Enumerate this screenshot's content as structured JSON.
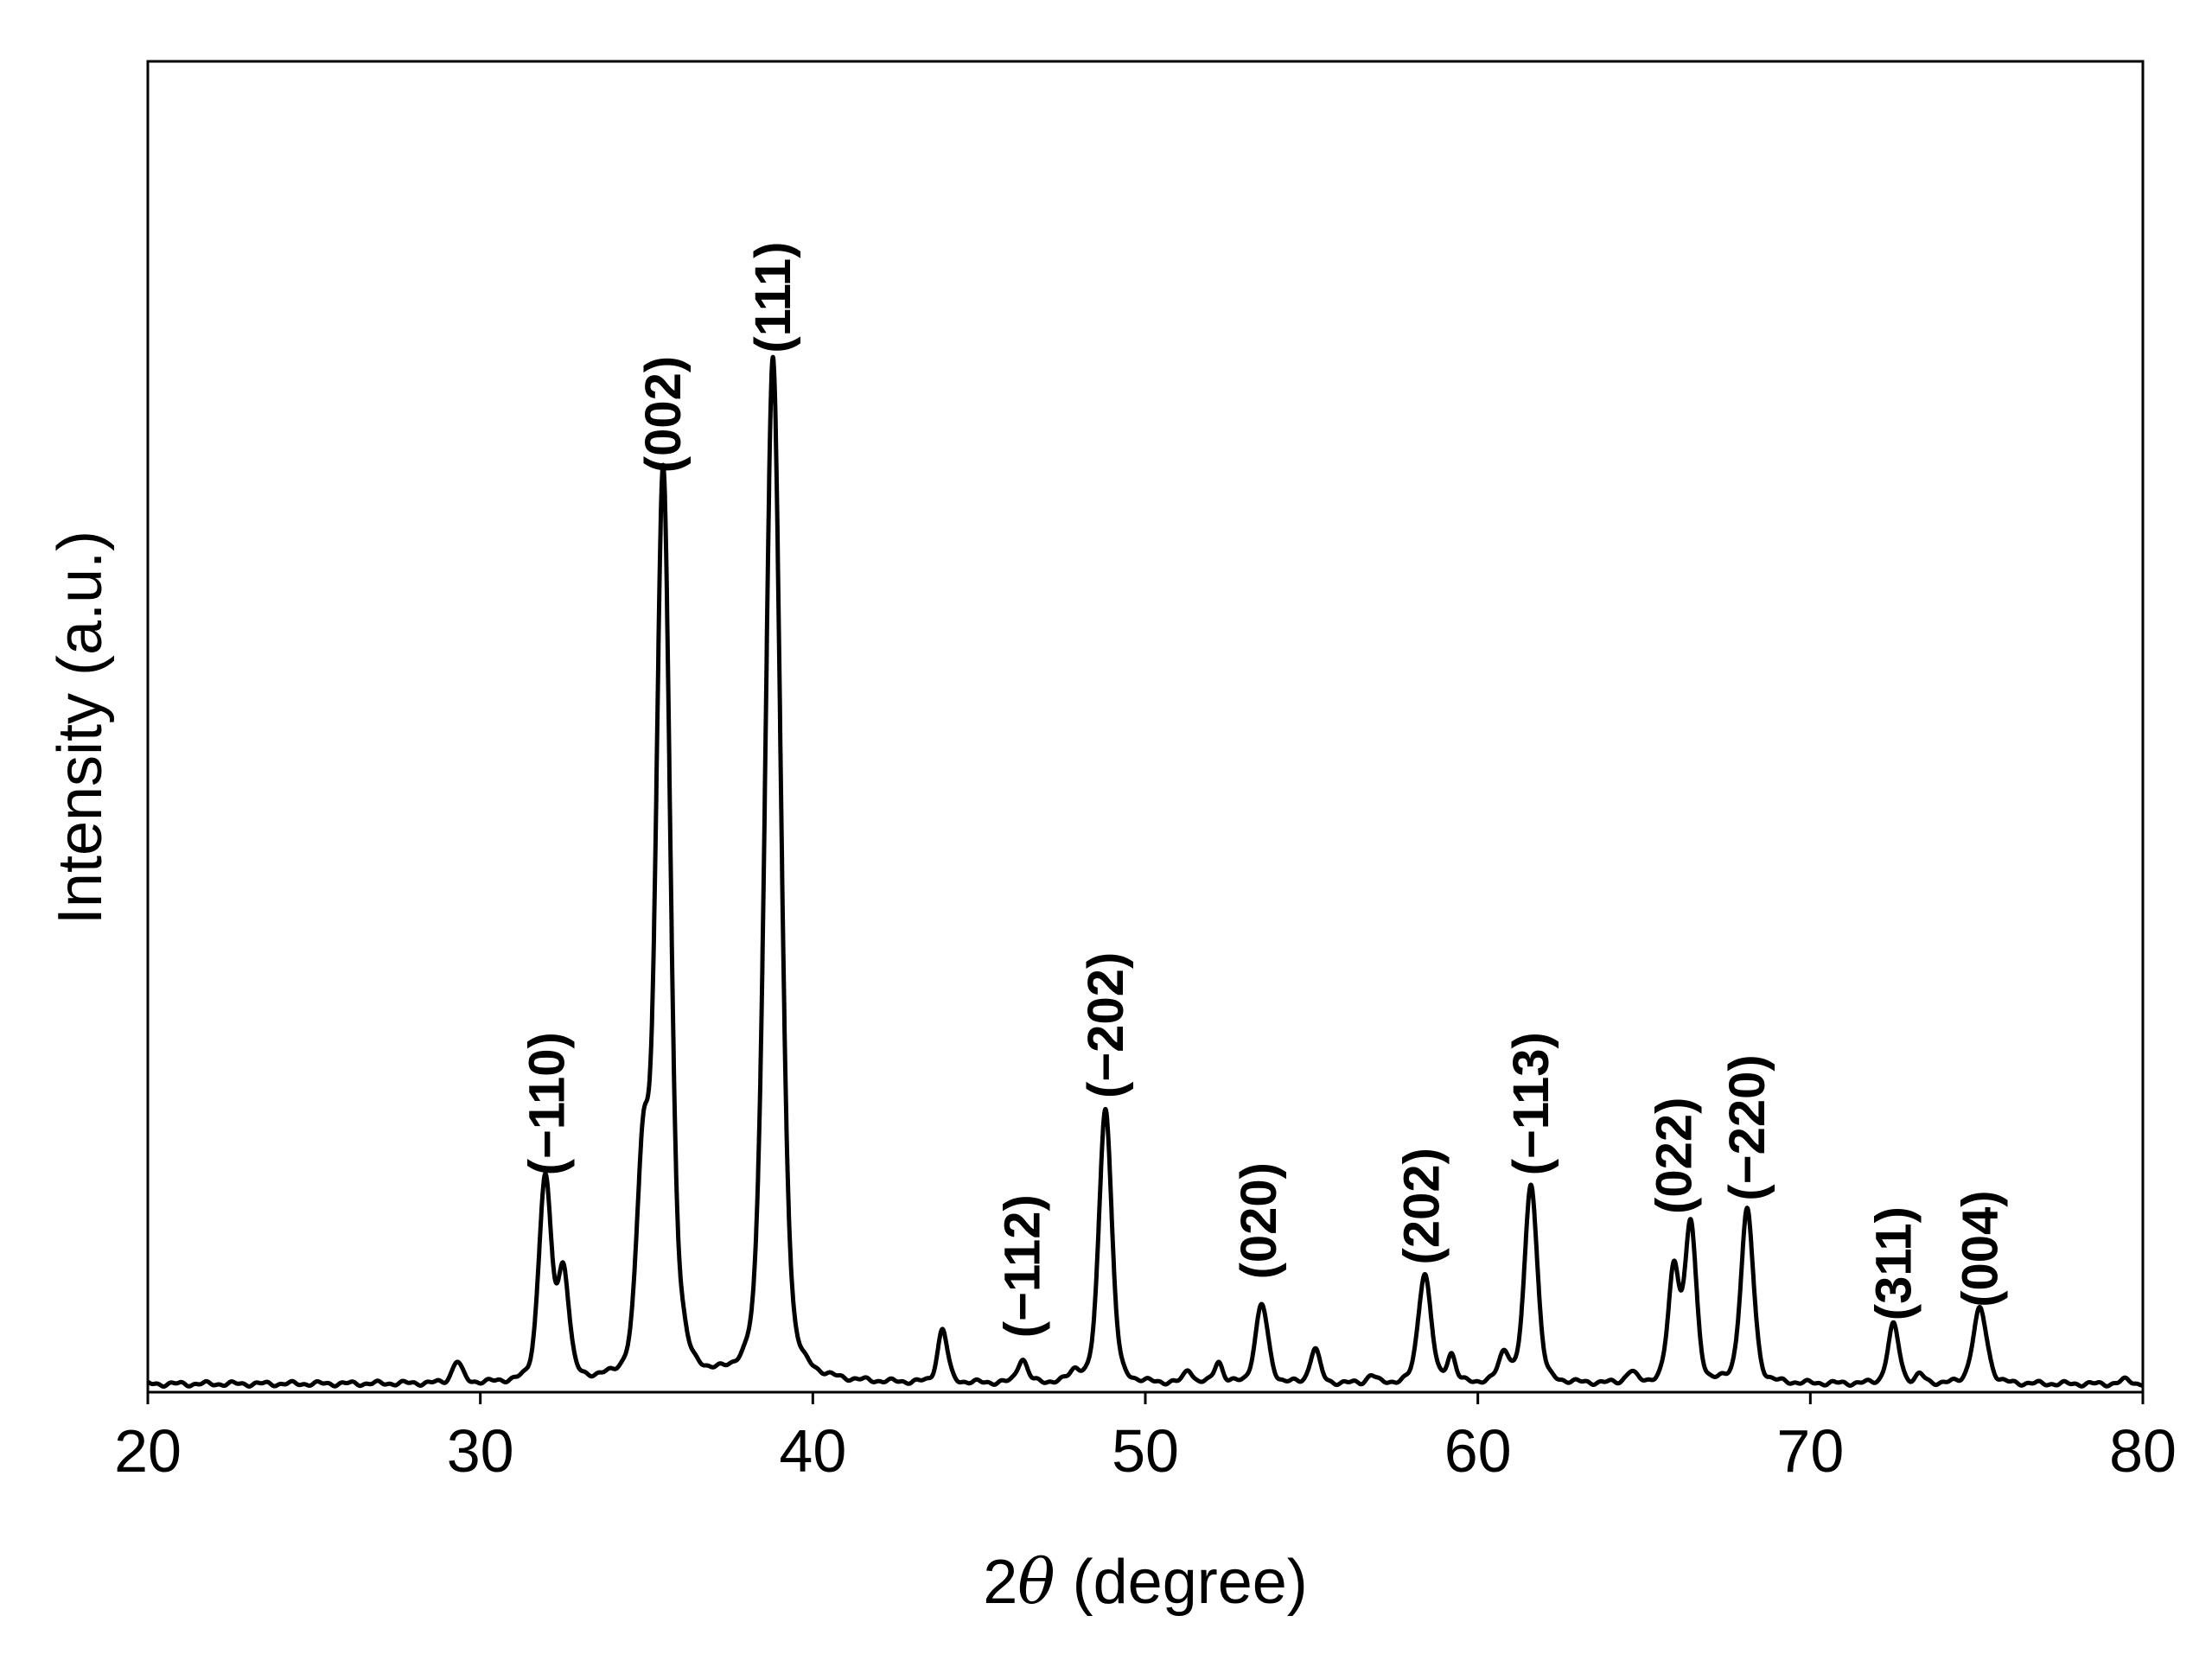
{
  "chart_data": {
    "type": "line",
    "title": "",
    "xlabel_num": "2",
    "xlabel_sym": "θ",
    "xlabel_unit": " (degree)",
    "ylabel": "Intensity (a.u.)",
    "xlim": [
      20,
      80
    ],
    "ylim": [
      0,
      100
    ],
    "grid": false,
    "legend": "none",
    "x_ticks": [
      20,
      30,
      40,
      50,
      60,
      70,
      80
    ],
    "x_tick_labels": [
      "20",
      "30",
      "40",
      "50",
      "60",
      "70",
      "80"
    ],
    "line_color": "#000000",
    "baseline": 0.6,
    "peaks": [
      {
        "x": 29.3,
        "h": 1.6,
        "w": 0.35
      },
      {
        "x": 31.95,
        "h": 15.2,
        "w": 0.45
      },
      {
        "x": 32.5,
        "h": 8.0,
        "w": 0.4
      },
      {
        "x": 34.9,
        "h": 15.8,
        "w": 0.45
      },
      {
        "x": 35.5,
        "h": 68.0,
        "w": 0.5
      },
      {
        "x": 36.1,
        "h": 1.2,
        "w": 0.3
      },
      {
        "x": 38.8,
        "h": 77.0,
        "w": 0.55
      },
      {
        "x": 43.9,
        "h": 4.0,
        "w": 0.35
      },
      {
        "x": 46.3,
        "h": 1.8,
        "w": 0.35
      },
      {
        "x": 47.9,
        "h": 0.8,
        "w": 0.4
      },
      {
        "x": 48.8,
        "h": 20.8,
        "w": 0.45
      },
      {
        "x": 51.3,
        "h": 1.0,
        "w": 0.3
      },
      {
        "x": 52.2,
        "h": 1.6,
        "w": 0.3
      },
      {
        "x": 53.5,
        "h": 5.9,
        "w": 0.45
      },
      {
        "x": 55.1,
        "h": 2.6,
        "w": 0.35
      },
      {
        "x": 56.8,
        "h": 0.6,
        "w": 0.3
      },
      {
        "x": 58.4,
        "h": 8.3,
        "w": 0.45
      },
      {
        "x": 59.2,
        "h": 2.1,
        "w": 0.3
      },
      {
        "x": 60.8,
        "h": 2.2,
        "w": 0.4
      },
      {
        "x": 61.6,
        "h": 15.0,
        "w": 0.45
      },
      {
        "x": 64.6,
        "h": 0.8,
        "w": 0.35
      },
      {
        "x": 65.9,
        "h": 8.5,
        "w": 0.4
      },
      {
        "x": 66.4,
        "h": 11.8,
        "w": 0.4
      },
      {
        "x": 68.1,
        "h": 13.0,
        "w": 0.45
      },
      {
        "x": 72.5,
        "h": 4.4,
        "w": 0.4
      },
      {
        "x": 73.3,
        "h": 0.6,
        "w": 0.3
      },
      {
        "x": 75.1,
        "h": 5.6,
        "w": 0.5
      },
      {
        "x": 79.5,
        "h": 0.3,
        "w": 0.4
      }
    ],
    "annotations": [
      {
        "text": "(−110)",
        "x": 32.0,
        "y": 15.5
      },
      {
        "text": "(002)",
        "x": 35.5,
        "y": 68.3
      },
      {
        "text": "(111)",
        "x": 38.8,
        "y": 77.3
      },
      {
        "text": "(−112)",
        "x": 46.3,
        "y": 3.3
      },
      {
        "text": "(−202)",
        "x": 48.8,
        "y": 21.3
      },
      {
        "text": "(020)",
        "x": 53.4,
        "y": 7.7
      },
      {
        "text": "(202)",
        "x": 58.3,
        "y": 8.8
      },
      {
        "text": "(−113)",
        "x": 61.6,
        "y": 15.5
      },
      {
        "text": "(022)",
        "x": 65.9,
        "y": 12.6
      },
      {
        "text": "(−220)",
        "x": 68.1,
        "y": 13.6
      },
      {
        "text": "(311)",
        "x": 72.5,
        "y": 4.6
      },
      {
        "text": "(004)",
        "x": 75.1,
        "y": 5.6
      }
    ]
  }
}
